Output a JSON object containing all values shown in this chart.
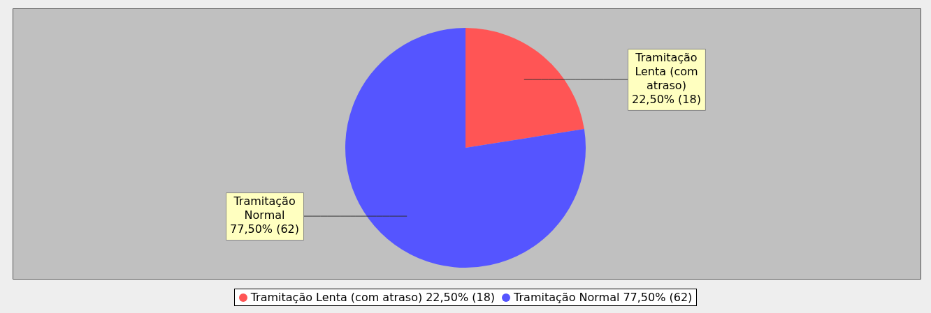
{
  "chart_data": {
    "type": "pie",
    "categories": [
      "Tramitação Lenta (com atraso)",
      "Tramitação Normal"
    ],
    "values": [
      18,
      62
    ],
    "colors": [
      "#ff5555",
      "#5555ff"
    ],
    "value_labels": [
      "22,50% (18)",
      "77,50% (62)"
    ],
    "legend": "bottom"
  }
}
